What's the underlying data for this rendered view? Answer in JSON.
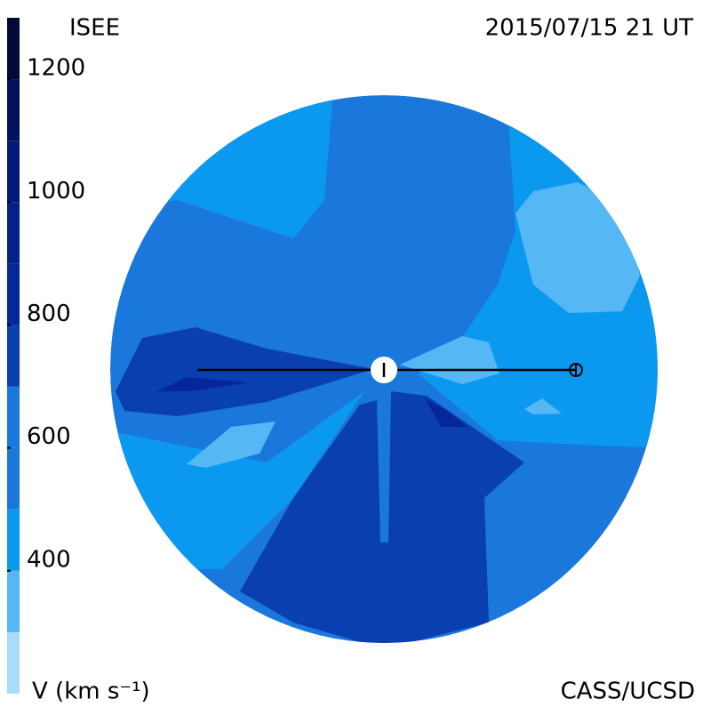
{
  "chart_data": {
    "type": "map",
    "title": "ISEE",
    "subtitle": "2015/07/15 21 UT",
    "credit": "CASS/UCSD",
    "colorbar_label": "V (km s⁻¹)",
    "clim": [
      200,
      1300
    ],
    "ticks": [
      400,
      600,
      800,
      1000,
      1200
    ],
    "bands": [
      {
        "from": 200,
        "color": "#a8dcf8"
      },
      {
        "from": 300,
        "color": "#55b8f5"
      },
      {
        "from": 400,
        "color": "#0b99f0"
      },
      {
        "from": 500,
        "color": "#1a78dc"
      },
      {
        "from": 600,
        "color": "#1a78dc"
      },
      {
        "from": 700,
        "color": "#0a3fb0"
      },
      {
        "from": 800,
        "color": "#06279a"
      },
      {
        "from": 900,
        "color": "#04208a"
      },
      {
        "from": 1000,
        "color": "#021a78"
      },
      {
        "from": 1100,
        "color": "#01125a"
      },
      {
        "from": 1200,
        "color": "#000a38"
      }
    ],
    "base_value": 550,
    "regions": [
      {
        "value": 450
      },
      {
        "value": 450
      },
      {
        "value": 450
      },
      {
        "value": 350
      },
      {
        "value": 350
      },
      {
        "value": 350
      },
      {
        "value": 350
      },
      {
        "value": 750
      },
      {
        "value": 750
      },
      {
        "value": 850
      },
      {
        "value": 850
      }
    ]
  }
}
